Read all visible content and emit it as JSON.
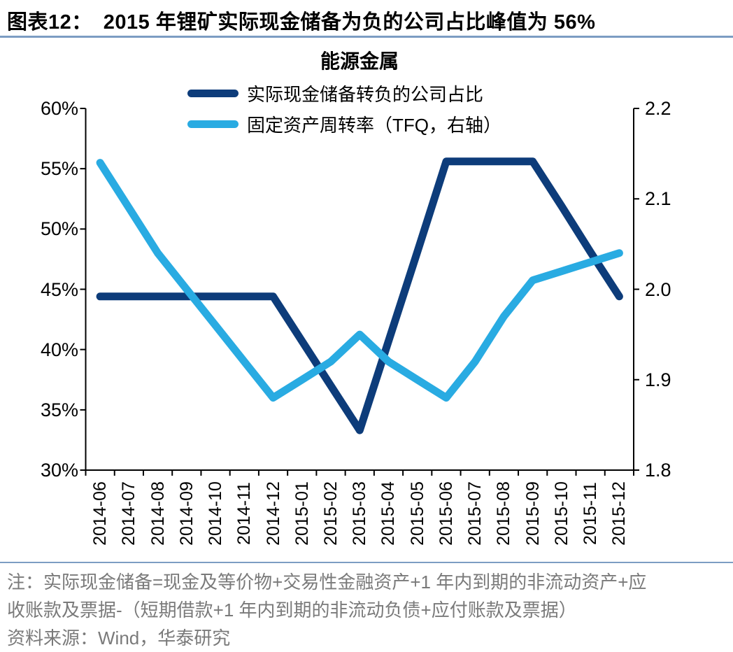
{
  "figure": {
    "title_prefix": "图表12：",
    "title_text": "2015 年锂矿实际现金储备为负的公司占比峰值为 56%"
  },
  "chart": {
    "title": "能源金属"
  },
  "chart_data": {
    "type": "line",
    "title": "能源金属",
    "categories": [
      "2014-06",
      "2014-07",
      "2014-08",
      "2014-09",
      "2014-10",
      "2014-11",
      "2014-12",
      "2015-01",
      "2015-02",
      "2015-03",
      "2015-04",
      "2015-05",
      "2015-06",
      "2015-07",
      "2015-08",
      "2015-09",
      "2015-10",
      "2015-11",
      "2015-12"
    ],
    "series": [
      {
        "name": "实际现金储备转负的公司占比",
        "axis": "left",
        "color": "#0d3c7a",
        "values": [
          44.4,
          44.4,
          44.4,
          44.4,
          44.4,
          44.4,
          44.4,
          40.7,
          37.0,
          33.3,
          40.7,
          48.1,
          55.6,
          55.6,
          55.6,
          55.6,
          51.9,
          48.1,
          44.4
        ]
      },
      {
        "name": "固定资产周转率（TFQ，右轴）",
        "axis": "right",
        "color": "#29abe2",
        "values": [
          2.14,
          2.09,
          2.04,
          2.0,
          1.96,
          1.92,
          1.88,
          1.9,
          1.92,
          1.95,
          1.92,
          1.9,
          1.88,
          1.92,
          1.97,
          2.01,
          2.02,
          2.03,
          2.04
        ]
      }
    ],
    "left_axis": {
      "min": 30,
      "max": 60,
      "ticks": [
        "60%",
        "55%",
        "50%",
        "45%",
        "40%",
        "35%",
        "30%"
      ],
      "unit": "%"
    },
    "right_axis": {
      "min": 1.8,
      "max": 2.2,
      "ticks": [
        "2.2",
        "2.1",
        "2.0",
        "1.9",
        "1.8"
      ]
    },
    "legend_position": "top-center",
    "grid": false
  },
  "notes": {
    "line1": "注：实际现金储备=现金及等价物+交易性金融资产+1 年内到期的非流动资产+应",
    "line2": "收账款及票据-（短期借款+1 年内到期的非流动负债+应付账款及票据）",
    "source": "资料来源：Wind，华泰研究"
  },
  "colors": {
    "series1": "#0d3c7a",
    "series2": "#29abe2",
    "rule": "#7c9dc3",
    "note_text": "#7a7a7a",
    "axis": "#000000"
  }
}
